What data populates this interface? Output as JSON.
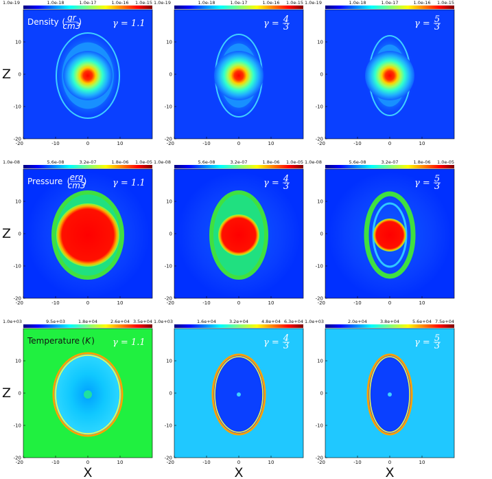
{
  "chart_data": {
    "type": "heatmap",
    "rows": [
      {
        "quantity": "Density",
        "unit_num": "gr",
        "unit_den": "cm3",
        "panels": [
          {
            "gamma": "1.1",
            "colorbar_ticks": [
              "1.0e-19",
              "1.0e-18",
              "1.0e-17",
              "1.0e-16",
              "1.0e-15"
            ]
          },
          {
            "gamma_num": "4",
            "gamma_den": "3",
            "colorbar_ticks": [
              "1.0e-19",
              "1.0e-18",
              "1.0e-17",
              "1.0e-16",
              "1.0e-15"
            ]
          },
          {
            "gamma_num": "5",
            "gamma_den": "3",
            "colorbar_ticks": [
              "1.0e-19",
              "1.0e-18",
              "1.0e-17",
              "1.0e-16",
              "1.0e-15"
            ]
          }
        ]
      },
      {
        "quantity": "Pressure",
        "unit_num": "erg",
        "unit_den": "cm3",
        "panels": [
          {
            "gamma": "1.1",
            "colorbar_ticks": [
              "1.0e-08",
              "5.6e-08",
              "3.2e-07",
              "1.8e-06",
              "1.0e-05"
            ]
          },
          {
            "gamma_num": "4",
            "gamma_den": "3",
            "colorbar_ticks": [
              "1.0e-08",
              "5.6e-08",
              "3.2e-07",
              "1.8e-06",
              "1.0e-05"
            ]
          },
          {
            "gamma_num": "5",
            "gamma_den": "3",
            "colorbar_ticks": [
              "1.0e-08",
              "5.6e-08",
              "3.2e-07",
              "1.8e-06",
              "1.0e-05"
            ]
          }
        ]
      },
      {
        "quantity": "Temperature",
        "unit": "K",
        "panels": [
          {
            "gamma": "1.1",
            "colorbar_ticks": [
              "1.0e+03",
              "9.5e+03",
              "1.8e+04",
              "2.6e+04",
              "3.5e+04"
            ]
          },
          {
            "gamma_num": "4",
            "gamma_den": "3",
            "colorbar_ticks": [
              "1.0e+03",
              "1.6e+04",
              "3.2e+04",
              "4.8e+04",
              "6.3e+04"
            ]
          },
          {
            "gamma_num": "5",
            "gamma_den": "3",
            "colorbar_ticks": [
              "1.0e+03",
              "2.0e+04",
              "3.8e+04",
              "5.6e+04",
              "7.5e+04"
            ]
          }
        ]
      }
    ],
    "xlabel": "X",
    "ylabel": "Z",
    "x_ticks": [
      "-20",
      "-10",
      "0",
      "10"
    ],
    "y_ticks": [
      "-20",
      "-10",
      "0",
      "10"
    ],
    "xlim": [
      -20,
      20
    ],
    "ylim": [
      -20,
      20
    ],
    "colormap": "jet"
  }
}
